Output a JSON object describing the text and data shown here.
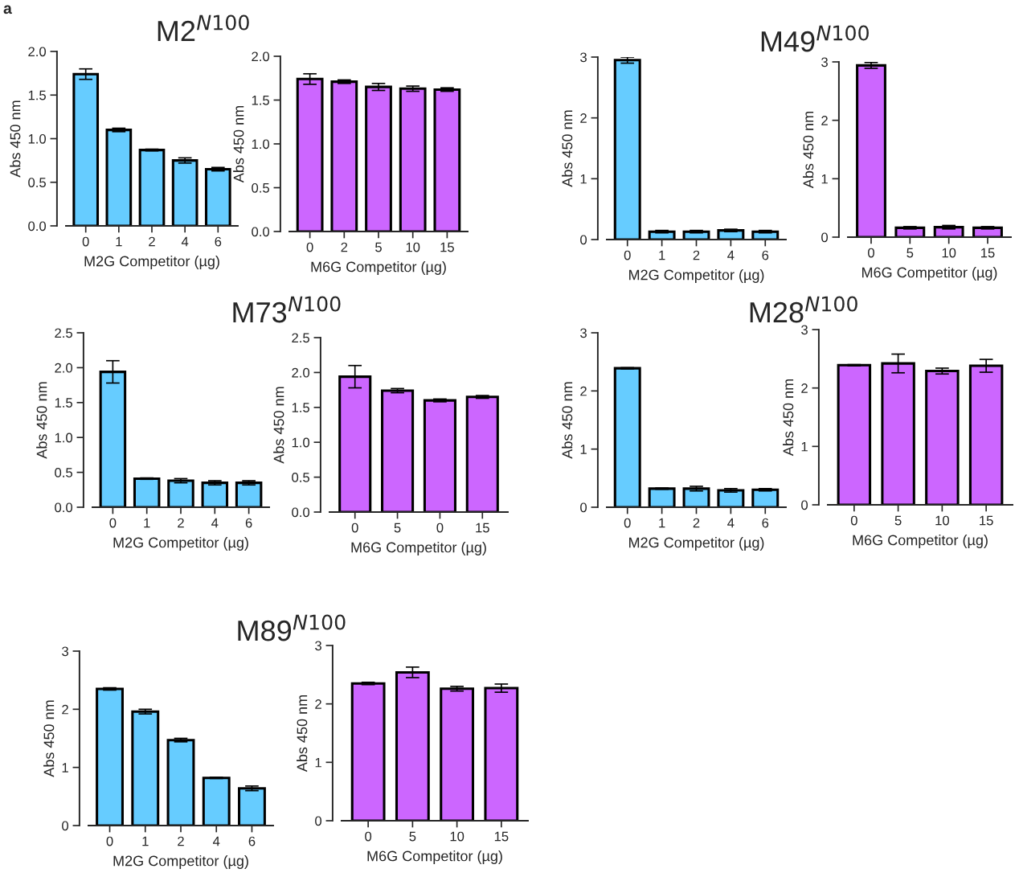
{
  "chart_data": [
    {
      "type": "bar",
      "title": "M2$^{N100}$",
      "annotations": [
        "a"
      ],
      "categories": [
        "0",
        "1",
        "2",
        "4",
        "6"
      ],
      "values": [
        1.74,
        1.1,
        0.87,
        0.75,
        0.65
      ],
      "errors": [
        0.06,
        0.02,
        0.01,
        0.03,
        0.02
      ],
      "color": "#66ccff",
      "xlabel": "M2G Competitor (µg)",
      "ylabel": "Abs 450 nm",
      "ylim": [
        0,
        2.0
      ],
      "yticks": [
        {
          "value": 0,
          "label": "0.0"
        },
        {
          "value": 0.5,
          "label": "0.5"
        },
        {
          "value": 1,
          "label": "1.0"
        },
        {
          "value": 1.5,
          "label": "1.5"
        },
        {
          "value": 2,
          "label": "2.0"
        }
      ]
    },
    {
      "type": "bar",
      "categories": [
        "0",
        "2",
        "5",
        "10",
        "15"
      ],
      "values": [
        1.74,
        1.71,
        1.65,
        1.63,
        1.62
      ],
      "errors": [
        0.06,
        0.02,
        0.04,
        0.03,
        0.02
      ],
      "color": "#cc66ff",
      "xlabel": "M6G Competitor (µg)",
      "ylabel": "Abs 450 nm",
      "ylim": [
        0,
        2.0
      ],
      "yticks": [
        {
          "value": 0,
          "label": "0.0"
        },
        {
          "value": 0.5,
          "label": "0.5"
        },
        {
          "value": 1,
          "label": "1.0"
        },
        {
          "value": 1.5,
          "label": "1.5"
        },
        {
          "value": 2,
          "label": "2.0"
        }
      ]
    },
    {
      "type": "bar",
      "categories": [
        "0",
        "1",
        "2",
        "4",
        "6"
      ],
      "values": [
        2.95,
        0.13,
        0.13,
        0.15,
        0.13
      ],
      "errors": [
        0.05,
        0.02,
        0.02,
        0.02,
        0.02
      ],
      "color": "#66ccff",
      "xlabel": "M2G Competitor (µg)",
      "ylabel": "Abs 450 nm",
      "ylim": [
        0,
        3
      ],
      "yticks": [
        0,
        1,
        2,
        3
      ]
    },
    {
      "type": "bar",
      "title": "M49$^{N100}$",
      "categories": [
        "0",
        "5",
        "10",
        "15"
      ],
      "values": [
        2.94,
        0.16,
        0.17,
        0.16
      ],
      "errors": [
        0.05,
        0.02,
        0.03,
        0.02
      ],
      "color": "#cc66ff",
      "xlabel": "M6G Competitor (µg)",
      "ylabel": "Abs 450 nm",
      "ylim": [
        0,
        3
      ],
      "yticks": [
        0,
        1,
        2,
        3
      ]
    },
    {
      "type": "bar",
      "title": "M73$^{N100}$",
      "categories": [
        "0",
        "1",
        "2",
        "4",
        "6"
      ],
      "values": [
        1.94,
        0.41,
        0.38,
        0.35,
        0.35
      ],
      "errors": [
        0.16,
        0.01,
        0.03,
        0.03,
        0.03
      ],
      "color": "#66ccff",
      "xlabel": "M2G Competitor (µg)",
      "ylabel": "Abs 450 nm",
      "ylim": [
        0,
        2.5
      ],
      "yticks": [
        {
          "value": 0,
          "label": "0.0"
        },
        {
          "value": 0.5,
          "label": "0.5"
        },
        {
          "value": 1,
          "label": "1.0"
        },
        {
          "value": 1.5,
          "label": "1.5"
        },
        {
          "value": 2,
          "label": "2.0"
        },
        {
          "value": 2.5,
          "label": "2.5"
        }
      ]
    },
    {
      "type": "bar",
      "categories": [
        "0",
        "5",
        "0",
        "15"
      ],
      "values": [
        1.94,
        1.74,
        1.6,
        1.65
      ],
      "errors": [
        0.16,
        0.03,
        0.02,
        0.02
      ],
      "color": "#cc66ff",
      "xlabel": "M6G Competitor (µg)",
      "ylabel": "Abs 450 nm",
      "ylim": [
        0,
        2.5
      ],
      "yticks": [
        {
          "value": 0,
          "label": "0.0"
        },
        {
          "value": 0.5,
          "label": "0.5"
        },
        {
          "value": 1,
          "label": "1.0"
        },
        {
          "value": 1.5,
          "label": "1.5"
        },
        {
          "value": 2,
          "label": "2.0"
        },
        {
          "value": 2.5,
          "label": "2.5"
        }
      ]
    },
    {
      "type": "bar",
      "title": "M28$^{N100}$",
      "categories": [
        "0",
        "1",
        "2",
        "4",
        "6"
      ],
      "values": [
        2.39,
        0.32,
        0.32,
        0.29,
        0.3
      ],
      "errors": [
        0.01,
        0.01,
        0.04,
        0.03,
        0.02
      ],
      "color": "#66ccff",
      "xlabel": "M2G Competitor (µg)",
      "ylabel": "Abs 450 nm",
      "ylim": [
        0,
        3
      ],
      "yticks": [
        0,
        1,
        2,
        3
      ]
    },
    {
      "type": "bar",
      "categories": [
        "0",
        "5",
        "10",
        "15"
      ],
      "values": [
        2.39,
        2.42,
        2.29,
        2.38
      ],
      "errors": [
        0.01,
        0.16,
        0.05,
        0.11
      ],
      "color": "#cc66ff",
      "xlabel": "M6G Competitor (µg)",
      "ylabel": "Abs 450 nm",
      "ylim": [
        0,
        3
      ],
      "yticks": [
        0,
        1,
        2,
        3
      ]
    },
    {
      "type": "bar",
      "title": "M89$^{N100}$",
      "categories": [
        "0",
        "1",
        "2",
        "4",
        "6"
      ],
      "values": [
        2.35,
        1.96,
        1.47,
        0.82,
        0.64
      ],
      "errors": [
        0.02,
        0.04,
        0.03,
        0.01,
        0.04
      ],
      "color": "#66ccff",
      "xlabel": "M2G Competitor (µg)",
      "ylabel": "Abs 450 nm",
      "ylim": [
        0,
        3
      ],
      "yticks": [
        0,
        1,
        2,
        3
      ]
    },
    {
      "type": "bar",
      "categories": [
        "0",
        "5",
        "10",
        "15"
      ],
      "values": [
        2.35,
        2.54,
        2.26,
        2.27
      ],
      "errors": [
        0.02,
        0.09,
        0.04,
        0.07
      ],
      "color": "#cc66ff",
      "xlabel": "M6G Competitor (µg)",
      "ylabel": "Abs 450 nm",
      "ylim": [
        0,
        3
      ],
      "yticks": [
        0,
        1,
        2,
        3
      ]
    }
  ]
}
